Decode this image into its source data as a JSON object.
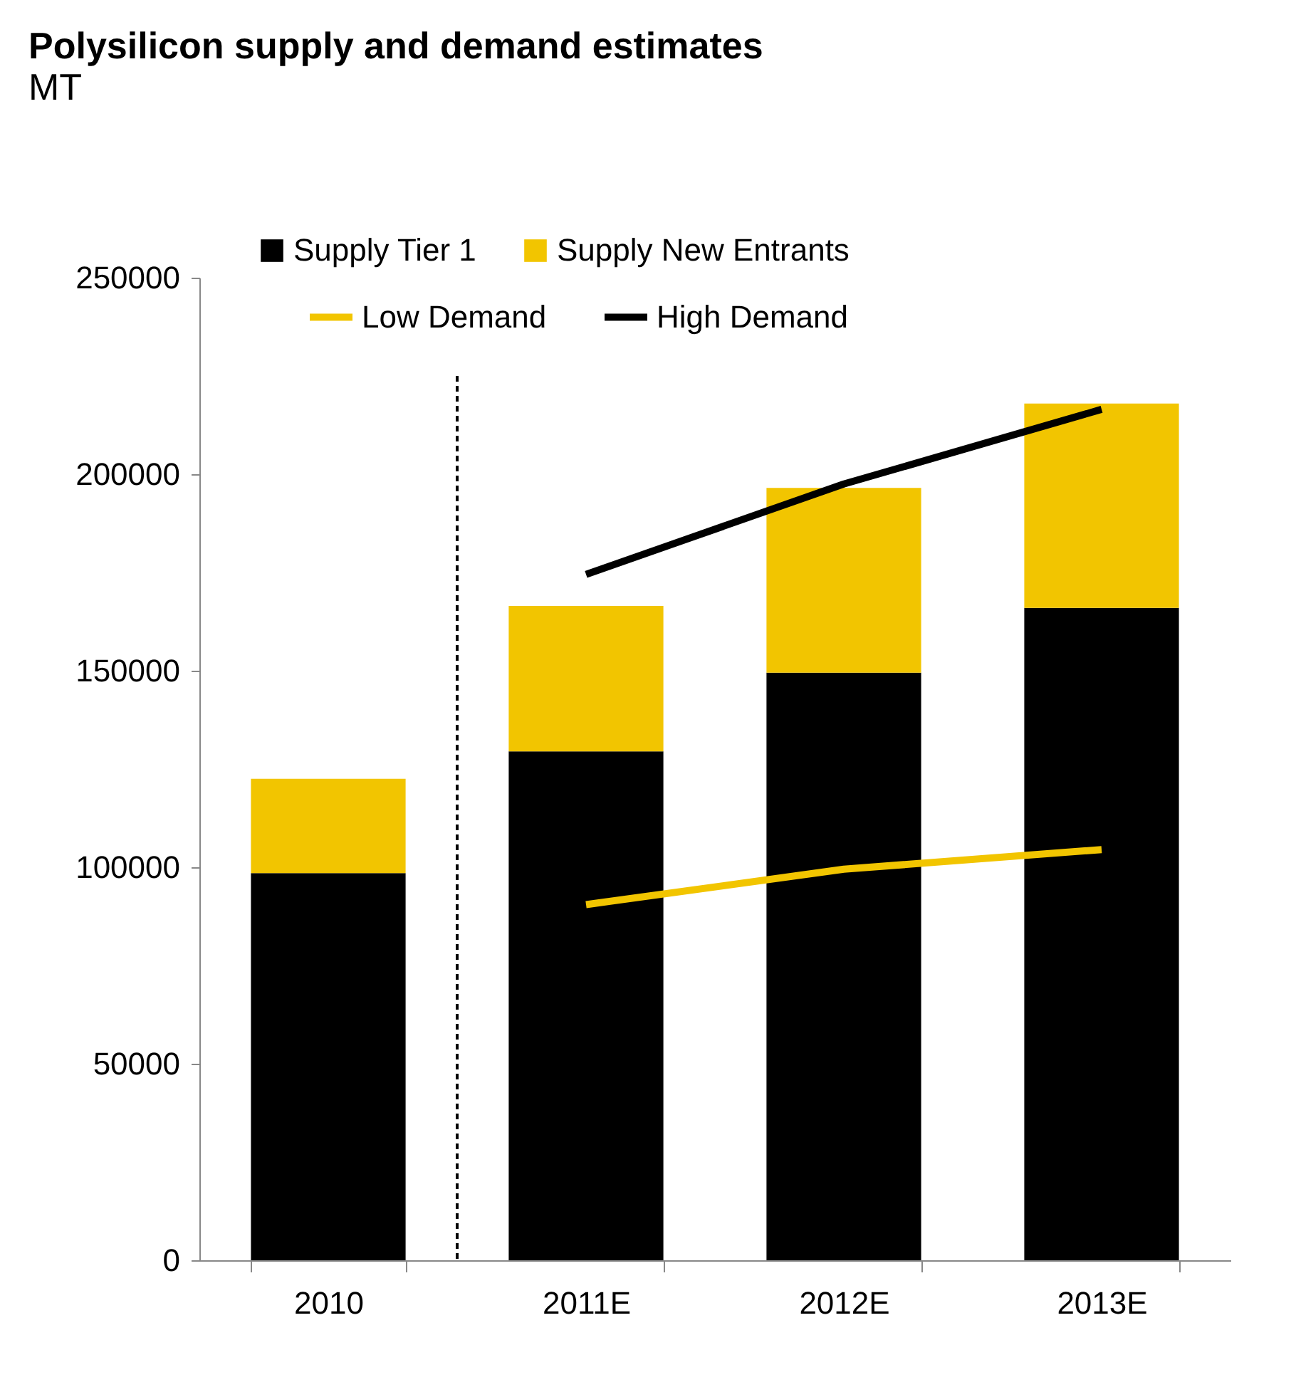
{
  "chart_data": {
    "type": "bar",
    "title": "Polysilicon supply and demand estimates",
    "subtitle": "MT",
    "categories": [
      "2010",
      "2011E",
      "2012E",
      "2013E"
    ],
    "stacked": true,
    "series": [
      {
        "name": "Supply Tier 1",
        "color": "#000000",
        "values": [
          98500,
          129500,
          149500,
          166000
        ]
      },
      {
        "name": "Supply New Entrants",
        "color": "#f2c500",
        "values": [
          24000,
          37000,
          47000,
          52000
        ]
      },
      {
        "name": "Low Demand",
        "type": "line",
        "color": "#f2c500",
        "values": [
          null,
          90500,
          99500,
          104500
        ]
      },
      {
        "name": "High Demand",
        "type": "line",
        "color": "#000000",
        "values": [
          null,
          174500,
          197500,
          216500
        ]
      }
    ],
    "ylim": [
      0,
      250000
    ],
    "yticks": [
      0,
      50000,
      100000,
      150000,
      200000,
      250000
    ],
    "grid": false,
    "legend": "top"
  }
}
